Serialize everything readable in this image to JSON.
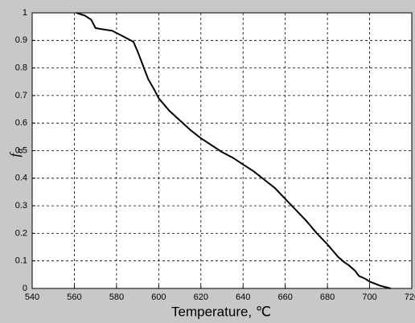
{
  "chart_data": {
    "type": "line",
    "x_label": "Temperature, ℃",
    "y_label": "f",
    "y_label_subscript": "α",
    "x": [
      561,
      565,
      568,
      569,
      570,
      572,
      578,
      583,
      588,
      590,
      593,
      595,
      598,
      600,
      605,
      610,
      615,
      620,
      625,
      630,
      635,
      640,
      645,
      650,
      655,
      660,
      665,
      670,
      675,
      680,
      685,
      688,
      690,
      693,
      695,
      698,
      700,
      705,
      710
    ],
    "series": [
      {
        "color": "#000000",
        "values": [
          1.0,
          0.99,
          0.975,
          0.96,
          0.945,
          0.942,
          0.935,
          0.915,
          0.895,
          0.86,
          0.8,
          0.76,
          0.72,
          0.69,
          0.645,
          0.61,
          0.575,
          0.545,
          0.52,
          0.495,
          0.475,
          0.45,
          0.425,
          0.395,
          0.365,
          0.325,
          0.285,
          0.245,
          0.2,
          0.16,
          0.115,
          0.095,
          0.085,
          0.065,
          0.045,
          0.035,
          0.025,
          0.01,
          0
        ]
      }
    ],
    "xlim": [
      540,
      720
    ],
    "xticks": [
      540,
      560,
      580,
      600,
      620,
      640,
      660,
      680,
      700,
      720
    ],
    "ylim": [
      0,
      1
    ],
    "yticks": [
      0,
      0.1,
      0.2,
      0.3,
      0.4,
      0.5,
      0.6,
      0.7,
      0.8,
      0.9,
      1
    ],
    "grid": true
  }
}
